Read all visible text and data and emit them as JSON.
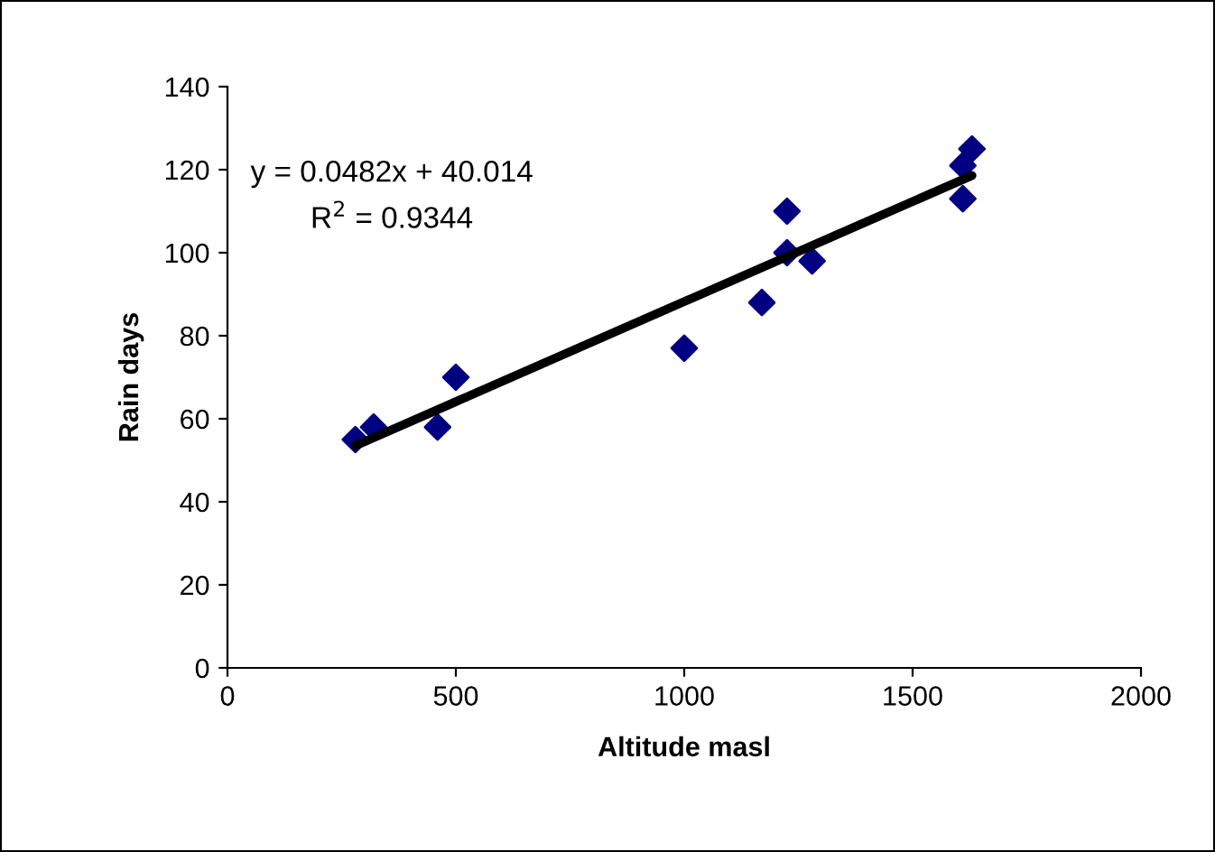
{
  "chart_data": {
    "type": "scatter",
    "xlabel": "Altitude masl",
    "ylabel": "Rain days",
    "series": [
      {
        "color": "#000080",
        "marker": "diamond",
        "x": [
          280,
          320,
          460,
          500,
          1000,
          1170,
          1225,
          1225,
          1280,
          1610,
          1610,
          1630
        ],
        "values": [
          55,
          58,
          58,
          70,
          77,
          88,
          110,
          100,
          98,
          121,
          113,
          125
        ]
      },
      {
        "type": "line",
        "color": "#000000",
        "marker": "none",
        "x": [
          280,
          1630
        ],
        "values": [
          53.5,
          118.6
        ]
      }
    ],
    "annotations": [
      "y = 0.0482x + 40.014",
      "R$^{2}$ = 0.9344"
    ],
    "xlim": [
      0,
      2000
    ],
    "xticks": [
      0,
      500,
      1000,
      1500,
      2000
    ],
    "ylim": [
      0,
      140
    ],
    "yticks": [
      0,
      20,
      40,
      60,
      80,
      100,
      120,
      140
    ],
    "grid": false,
    "legend": false
  }
}
